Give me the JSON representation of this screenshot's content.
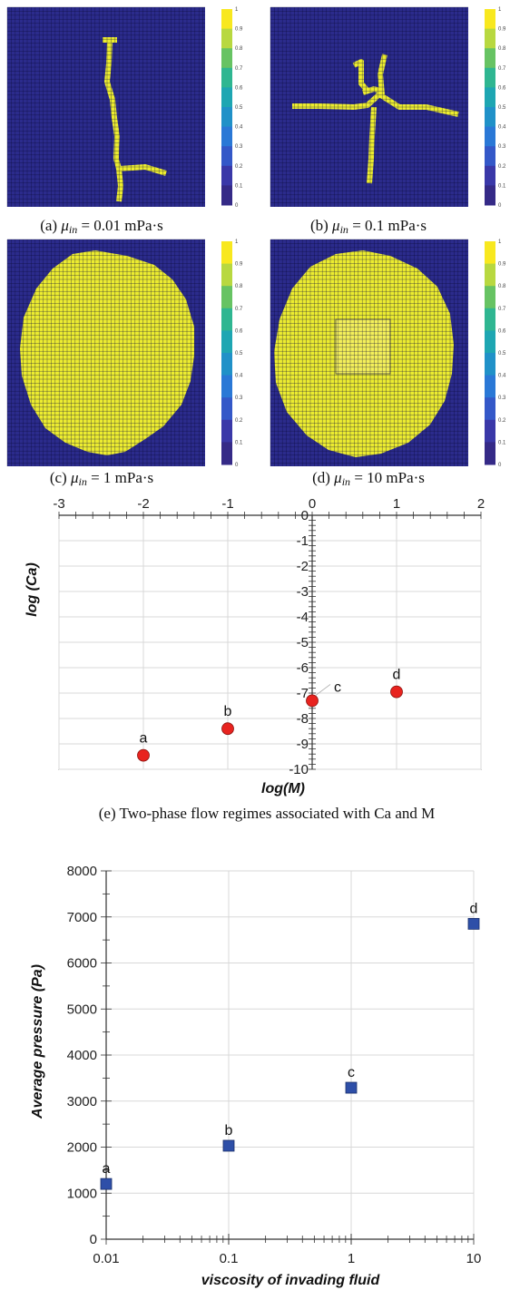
{
  "captions": {
    "a": "(a) μin = 0.01 mPa·s",
    "b": "(b) μin = 0.1 mPa·s",
    "c": "(c) μin = 1 mPa·s",
    "d": "(d) μin = 10 mPa·s",
    "e": "(e) Two-phase flow regimes associated with Ca and M"
  },
  "colors": {
    "background": "#2b2b8c",
    "fluid": "#ecec30",
    "grid": "#0d0d3a",
    "marker_e": "#e8231f",
    "marker_f": "#2e4fa8"
  },
  "colorbar": {
    "ticks": [
      "1",
      "0.9",
      "0.8",
      "0.7",
      "0.6",
      "0.5",
      "0.4",
      "0.3",
      "0.2",
      "0.1",
      "0"
    ],
    "colors": [
      "#f8e81f",
      "#b8d840",
      "#67c363",
      "#2fb691",
      "#1ea6b2",
      "#2091c8",
      "#2a78d6",
      "#3458c8",
      "#3a38a8",
      "#352a87"
    ]
  },
  "chart_data": [
    {
      "type": "scatter",
      "xlabel": "log(M)",
      "ylabel": "log (Ca)",
      "xlim": [
        -3,
        2
      ],
      "ylim": [
        -10,
        0
      ],
      "x_ticks": [
        "-3",
        "-2",
        "-1",
        "0",
        "1",
        "2"
      ],
      "y_ticks": [
        "0",
        "-1",
        "-2",
        "-3",
        "-4",
        "-5",
        "-6",
        "-7",
        "-8",
        "-9",
        "-10"
      ],
      "grid": true,
      "points": [
        {
          "label": "a",
          "x": -2,
          "y": -9.45
        },
        {
          "label": "b",
          "x": -1,
          "y": -8.4
        },
        {
          "label": "c",
          "x": 0,
          "y": -7.3
        },
        {
          "label": "d",
          "x": 1,
          "y": -6.95
        }
      ]
    },
    {
      "type": "scatter",
      "xscale": "log",
      "xlabel": "viscosity of invading fluid",
      "ylabel": "Average  pressure (Pa)",
      "xlim": [
        0.01,
        10
      ],
      "ylim": [
        0,
        8000
      ],
      "x_ticks": [
        "0.01",
        "0.1",
        "1",
        "10"
      ],
      "y_ticks": [
        "0",
        "1000",
        "2000",
        "3000",
        "4000",
        "5000",
        "6000",
        "7000",
        "8000"
      ],
      "grid": true,
      "points": [
        {
          "label": "a",
          "x": 0.01,
          "y": 1200
        },
        {
          "label": "b",
          "x": 0.1,
          "y": 2030
        },
        {
          "label": "c",
          "x": 1,
          "y": 3290
        },
        {
          "label": "d",
          "x": 10,
          "y": 6850
        }
      ]
    }
  ]
}
